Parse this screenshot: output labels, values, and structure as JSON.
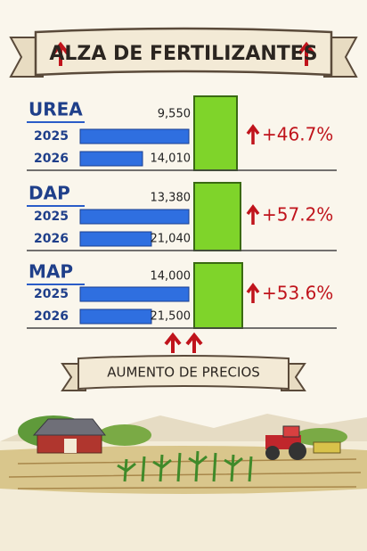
{
  "header": {
    "title": "ALZA DE FERTILIZANTES"
  },
  "products": [
    {
      "name": "UREA",
      "rows": [
        {
          "year": "2025",
          "price": "9,550"
        },
        {
          "year": "2026",
          "price": "14,010"
        }
      ],
      "change": "+46.7%"
    },
    {
      "name": "DAP",
      "rows": [
        {
          "year": "2025",
          "price": "13,380"
        },
        {
          "year": "2026",
          "price": "21,040"
        }
      ],
      "change": "+57.2%"
    },
    {
      "name": "MAP",
      "rows": [
        {
          "year": "2025",
          "price": "14,000"
        },
        {
          "year": "2026",
          "price": "21,500"
        }
      ],
      "change": "+53.6%"
    }
  ],
  "footer": {
    "banner": "AUMENTO DE PRECIOS"
  }
}
